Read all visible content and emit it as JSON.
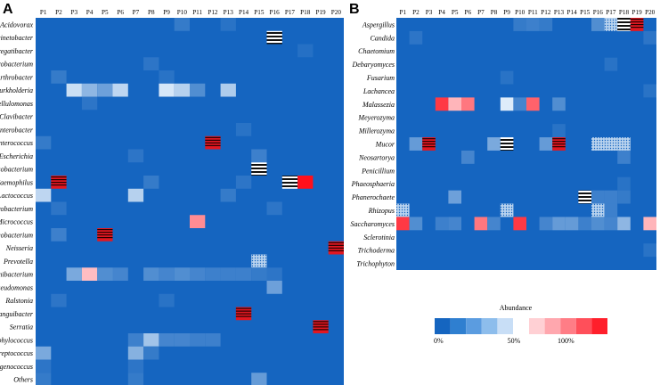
{
  "chart_data": [
    {
      "type": "heatmap",
      "panel": "A",
      "columns": [
        "P1",
        "P2",
        "P3",
        "P4",
        "P5",
        "P6",
        "P7",
        "P8",
        "P9",
        "P10",
        "P11",
        "P12",
        "P13",
        "P14",
        "P15",
        "P16",
        "P17",
        "P18",
        "P19",
        "P20"
      ],
      "rows": [
        "Acidovorax",
        "Acinetobacter",
        "Aggregatibacter",
        "Agrobacterium",
        "Arthrobacter",
        "Burkholderia",
        "Cellulomonas",
        "Clavibacter",
        "Enterobacter",
        "Enterococcus",
        "Escherichia",
        "Fusobacterium",
        "Haemophilus",
        "Lactococcus",
        "Microbacterium",
        "Micrococcus",
        "Mycobacterium",
        "Neisseria",
        "Prevotella",
        "Propionibacterium",
        "Pseudomonas",
        "Ralstonia",
        "Sanguibacter",
        "Serratia",
        "Staphylococcus",
        "Streptococcus",
        "Tetragenococcus",
        "Others"
      ],
      "value_unit": "abundance (0-1)",
      "cells": [
        {
          "row": "Acidovorax",
          "col": "P10",
          "value": 0.08
        },
        {
          "row": "Acidovorax",
          "col": "P13",
          "value": 0.05
        },
        {
          "row": "Acinetobacter",
          "col": "P16",
          "value": 1.0,
          "pattern": "stripe"
        },
        {
          "row": "Aggregatibacter",
          "col": "P18",
          "value": 0.04
        },
        {
          "row": "Agrobacterium",
          "col": "P8",
          "value": 0.06
        },
        {
          "row": "Arthrobacter",
          "col": "P2",
          "value": 0.08
        },
        {
          "row": "Arthrobacter",
          "col": "P9",
          "value": 0.05
        },
        {
          "row": "Burkholderia",
          "col": "P3",
          "value": 0.45
        },
        {
          "row": "Burkholderia",
          "col": "P4",
          "value": 0.3
        },
        {
          "row": "Burkholderia",
          "col": "P5",
          "value": 0.22
        },
        {
          "row": "Burkholderia",
          "col": "P6",
          "value": 0.42
        },
        {
          "row": "Burkholderia",
          "col": "P9",
          "value": 0.48
        },
        {
          "row": "Burkholderia",
          "col": "P10",
          "value": 0.4
        },
        {
          "row": "Burkholderia",
          "col": "P11",
          "value": 0.15
        },
        {
          "row": "Burkholderia",
          "col": "P13",
          "value": 0.38
        },
        {
          "row": "Cellulomonas",
          "col": "P4",
          "value": 0.06
        },
        {
          "row": "Enterobacter",
          "col": "P14",
          "value": 0.05
        },
        {
          "row": "Enterococcus",
          "col": "P1",
          "value": 0.08
        },
        {
          "row": "Enterococcus",
          "col": "P12",
          "value": 1.0,
          "pattern": "stripe"
        },
        {
          "row": "Escherichia",
          "col": "P7",
          "value": 0.06
        },
        {
          "row": "Escherichia",
          "col": "P15",
          "value": 0.1
        },
        {
          "row": "Fusobacterium",
          "col": "P15",
          "value": 1.0,
          "pattern": "stripe"
        },
        {
          "row": "Haemophilus",
          "col": "P2",
          "value": 0.9,
          "pattern": "stripe"
        },
        {
          "row": "Haemophilus",
          "col": "P8",
          "value": 0.08
        },
        {
          "row": "Haemophilus",
          "col": "P14",
          "value": 0.06
        },
        {
          "row": "Haemophilus",
          "col": "P17",
          "value": 1.0,
          "pattern": "stripe"
        },
        {
          "row": "Haemophilus",
          "col": "P18",
          "value": 1.0
        },
        {
          "row": "Lactococcus",
          "col": "P1",
          "value": 0.42
        },
        {
          "row": "Lactococcus",
          "col": "P7",
          "value": 0.4
        },
        {
          "row": "Lactococcus",
          "col": "P13",
          "value": 0.08
        },
        {
          "row": "Microbacterium",
          "col": "P2",
          "value": 0.06
        },
        {
          "row": "Microbacterium",
          "col": "P16",
          "value": 0.06
        },
        {
          "row": "Micrococcus",
          "col": "P11",
          "value": 0.7
        },
        {
          "row": "Mycobacterium",
          "col": "P2",
          "value": 0.1
        },
        {
          "row": "Mycobacterium",
          "col": "P5",
          "value": 1.0,
          "pattern": "stripe"
        },
        {
          "row": "Neisseria",
          "col": "P20",
          "value": 1.0,
          "pattern": "stripe"
        },
        {
          "row": "Prevotella",
          "col": "P15",
          "value": 0.45,
          "pattern": "dots"
        },
        {
          "row": "Propionibacterium",
          "col": "P3",
          "value": 0.25
        },
        {
          "row": "Propionibacterium",
          "col": "P4",
          "value": 0.58
        },
        {
          "row": "Propionibacterium",
          "col": "P5",
          "value": 0.15
        },
        {
          "row": "Propionibacterium",
          "col": "P6",
          "value": 0.12
        },
        {
          "row": "Propionibacterium",
          "col": "P8",
          "value": 0.15
        },
        {
          "row": "Propionibacterium",
          "col": "P9",
          "value": 0.12
        },
        {
          "row": "Propionibacterium",
          "col": "P10",
          "value": 0.15
        },
        {
          "row": "Propionibacterium",
          "col": "P11",
          "value": 0.12
        },
        {
          "row": "Propionibacterium",
          "col": "P12",
          "value": 0.1
        },
        {
          "row": "Propionibacterium",
          "col": "P13",
          "value": 0.1
        },
        {
          "row": "Propionibacterium",
          "col": "P14",
          "value": 0.1
        },
        {
          "row": "Propionibacterium",
          "col": "P15",
          "value": 0.08
        },
        {
          "row": "Propionibacterium",
          "col": "P16",
          "value": 0.06
        },
        {
          "row": "Pseudomonas",
          "col": "P16",
          "value": 0.22
        },
        {
          "row": "Ralstonia",
          "col": "P2",
          "value": 0.06
        },
        {
          "row": "Ralstonia",
          "col": "P9",
          "value": 0.05
        },
        {
          "row": "Sanguibacter",
          "col": "P14",
          "value": 1.0,
          "pattern": "stripe"
        },
        {
          "row": "Serratia",
          "col": "P19",
          "value": 1.0,
          "pattern": "stripe"
        },
        {
          "row": "Staphylococcus",
          "col": "P7",
          "value": 0.1
        },
        {
          "row": "Staphylococcus",
          "col": "P8",
          "value": 0.35
        },
        {
          "row": "Staphylococcus",
          "col": "P9",
          "value": 0.12
        },
        {
          "row": "Staphylococcus",
          "col": "P10",
          "value": 0.12
        },
        {
          "row": "Staphylococcus",
          "col": "P11",
          "value": 0.1
        },
        {
          "row": "Staphylococcus",
          "col": "P12",
          "value": 0.1
        },
        {
          "row": "Streptococcus",
          "col": "P1",
          "value": 0.25
        },
        {
          "row": "Streptococcus",
          "col": "P7",
          "value": 0.28
        },
        {
          "row": "Streptococcus",
          "col": "P8",
          "value": 0.08
        },
        {
          "row": "Tetragenococcus",
          "col": "P1",
          "value": 0.06
        },
        {
          "row": "Tetragenococcus",
          "col": "P7",
          "value": 0.06
        },
        {
          "row": "Others",
          "col": "P1",
          "value": 0.08
        },
        {
          "row": "Others",
          "col": "P7",
          "value": 0.08
        },
        {
          "row": "Others",
          "col": "P15",
          "value": 0.2
        }
      ]
    },
    {
      "type": "heatmap",
      "panel": "B",
      "columns": [
        "P1",
        "P2",
        "P3",
        "P4",
        "P5",
        "P6",
        "P7",
        "P8",
        "P9",
        "P10",
        "P11",
        "P12",
        "P13",
        "P14",
        "P15",
        "P16",
        "P17",
        "P18",
        "P19",
        "P20"
      ],
      "rows": [
        "Aspergillus",
        "Candida",
        "Chaetomium",
        "Debaryomyces",
        "Fusarium",
        "Lachancea",
        "Malassezia",
        "Meyerozyma",
        "Millerozyma",
        "Mucor",
        "Neosartorya",
        "Penicillium",
        "Phaeosphaeria",
        "Phanerochaete",
        "Rhizopus",
        "Saccharomyces",
        "Sclerotinia",
        "Trichoderma",
        "Trichophyton"
      ],
      "value_unit": "abundance (0-1)",
      "cells": [
        {
          "row": "Aspergillus",
          "col": "P10",
          "value": 0.08
        },
        {
          "row": "Aspergillus",
          "col": "P11",
          "value": 0.1
        },
        {
          "row": "Aspergillus",
          "col": "P12",
          "value": 0.08
        },
        {
          "row": "Aspergillus",
          "col": "P16",
          "value": 0.15
        },
        {
          "row": "Aspergillus",
          "col": "P17",
          "value": 0.3,
          "pattern": "dots"
        },
        {
          "row": "Aspergillus",
          "col": "P18",
          "value": 1.0,
          "pattern": "stripe"
        },
        {
          "row": "Aspergillus",
          "col": "P19",
          "value": 1.0,
          "pattern": "stripe"
        },
        {
          "row": "Candida",
          "col": "P2",
          "value": 0.06
        },
        {
          "row": "Candida",
          "col": "P20",
          "value": 0.06
        },
        {
          "row": "Debaryomyces",
          "col": "P17",
          "value": 0.05
        },
        {
          "row": "Fusarium",
          "col": "P9",
          "value": 0.05
        },
        {
          "row": "Lachancea",
          "col": "P20",
          "value": 0.05
        },
        {
          "row": "Malassezia",
          "col": "P4",
          "value": 0.9
        },
        {
          "row": "Malassezia",
          "col": "P5",
          "value": 0.6
        },
        {
          "row": "Malassezia",
          "col": "P6",
          "value": 0.75
        },
        {
          "row": "Malassezia",
          "col": "P9",
          "value": 0.5
        },
        {
          "row": "Malassezia",
          "col": "P10",
          "value": 0.12
        },
        {
          "row": "Malassezia",
          "col": "P11",
          "value": 0.8
        },
        {
          "row": "Malassezia",
          "col": "P13",
          "value": 0.15
        },
        {
          "row": "Millerozyma",
          "col": "P13",
          "value": 0.05
        },
        {
          "row": "Mucor",
          "col": "P2",
          "value": 0.2
        },
        {
          "row": "Mucor",
          "col": "P3",
          "value": 1.0,
          "pattern": "stripe"
        },
        {
          "row": "Mucor",
          "col": "P8",
          "value": 0.25
        },
        {
          "row": "Mucor",
          "col": "P9",
          "value": 1.0,
          "pattern": "stripe"
        },
        {
          "row": "Mucor",
          "col": "P12",
          "value": 0.2
        },
        {
          "row": "Mucor",
          "col": "P13",
          "value": 1.0,
          "pattern": "stripe"
        },
        {
          "row": "Mucor",
          "col": "P16",
          "value": 0.3,
          "pattern": "dots"
        },
        {
          "row": "Mucor",
          "col": "P17",
          "value": 0.3,
          "pattern": "dots"
        },
        {
          "row": "Mucor",
          "col": "P18",
          "value": 0.3,
          "pattern": "dots"
        },
        {
          "row": "Neosartorya",
          "col": "P6",
          "value": 0.12
        },
        {
          "row": "Neosartorya",
          "col": "P18",
          "value": 0.1
        },
        {
          "row": "Phaeosphaeria",
          "col": "P18",
          "value": 0.05
        },
        {
          "row": "Phanerochaete",
          "col": "P5",
          "value": 0.22
        },
        {
          "row": "Phanerochaete",
          "col": "P15",
          "value": 1.0,
          "pattern": "stripe"
        },
        {
          "row": "Phanerochaete",
          "col": "P16",
          "value": 0.1
        },
        {
          "row": "Phanerochaete",
          "col": "P17",
          "value": 0.1
        },
        {
          "row": "Phanerochaete",
          "col": "P18",
          "value": 0.08
        },
        {
          "row": "Rhizopus",
          "col": "P1",
          "value": 0.2,
          "pattern": "dots"
        },
        {
          "row": "Rhizopus",
          "col": "P9",
          "value": 0.25,
          "pattern": "dots"
        },
        {
          "row": "Rhizopus",
          "col": "P16",
          "value": 0.25,
          "pattern": "dots"
        },
        {
          "row": "Rhizopus",
          "col": "P17",
          "value": 0.1
        },
        {
          "row": "Saccharomyces",
          "col": "P1",
          "value": 0.9
        },
        {
          "row": "Saccharomyces",
          "col": "P2",
          "value": 0.15
        },
        {
          "row": "Saccharomyces",
          "col": "P4",
          "value": 0.1
        },
        {
          "row": "Saccharomyces",
          "col": "P5",
          "value": 0.12
        },
        {
          "row": "Saccharomyces",
          "col": "P7",
          "value": 0.75
        },
        {
          "row": "Saccharomyces",
          "col": "P8",
          "value": 0.12
        },
        {
          "row": "Saccharomyces",
          "col": "P10",
          "value": 0.9
        },
        {
          "row": "Saccharomyces",
          "col": "P12",
          "value": 0.12
        },
        {
          "row": "Saccharomyces",
          "col": "P13",
          "value": 0.2
        },
        {
          "row": "Saccharomyces",
          "col": "P14",
          "value": 0.2
        },
        {
          "row": "Saccharomyces",
          "col": "P15",
          "value": 0.1
        },
        {
          "row": "Saccharomyces",
          "col": "P16",
          "value": 0.15
        },
        {
          "row": "Saccharomyces",
          "col": "P17",
          "value": 0.12
        },
        {
          "row": "Saccharomyces",
          "col": "P18",
          "value": 0.3
        },
        {
          "row": "Saccharomyces",
          "col": "P20",
          "value": 0.6
        },
        {
          "row": "Trichoderma",
          "col": "P20",
          "value": 0.05
        }
      ]
    }
  ],
  "legend": {
    "title": "Abundance",
    "tick_labels": [
      "0%",
      "50%",
      "100%"
    ],
    "colors": [
      "#1565c0",
      "#2f7fd0",
      "#5b9ce0",
      "#8dbdec",
      "#c8def6",
      "#ffd0d4",
      "#ffa7ae",
      "#ff7d86",
      "#ff4f5a",
      "#ff1f2b"
    ]
  },
  "pattern_colors": {
    "stripe_dark": "#111111",
    "stripe_light": "#ffffff",
    "dots_bg": "#b9d3ee",
    "dots_fg": "#1565c0"
  }
}
